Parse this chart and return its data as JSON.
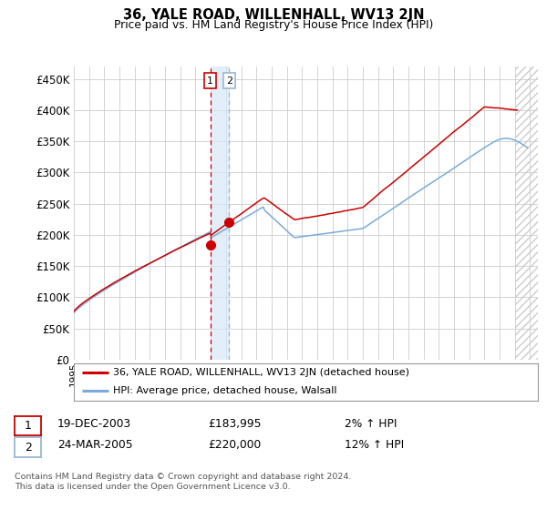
{
  "title": "36, YALE ROAD, WILLENHALL, WV13 2JN",
  "subtitle": "Price paid vs. HM Land Registry's House Price Index (HPI)",
  "yticks": [
    0,
    50000,
    100000,
    150000,
    200000,
    250000,
    300000,
    350000,
    400000,
    450000
  ],
  "ylim": [
    0,
    470000
  ],
  "legend_label_red": "36, YALE ROAD, WILLENHALL, WV13 2JN (detached house)",
  "legend_label_blue": "HPI: Average price, detached house, Walsall",
  "transaction1_date": "19-DEC-2003",
  "transaction1_price": "£183,995",
  "transaction1_hpi": "2% ↑ HPI",
  "transaction2_date": "24-MAR-2005",
  "transaction2_price": "£220,000",
  "transaction2_hpi": "12% ↑ HPI",
  "footnote1": "Contains HM Land Registry data © Crown copyright and database right 2024.",
  "footnote2": "This data is licensed under the Open Government Licence v3.0.",
  "line_color_red": "#cc0000",
  "line_color_blue": "#7aabdb",
  "shade_color": "#d6e8f7",
  "vline1_color": "#cc0000",
  "vline2_color": "#9ab8d4",
  "background_color": "#ffffff",
  "grid_color": "#cccccc",
  "transaction1_year": 2003.97,
  "transaction2_year": 2005.22,
  "marker1_value": 183995,
  "marker2_value": 220000
}
